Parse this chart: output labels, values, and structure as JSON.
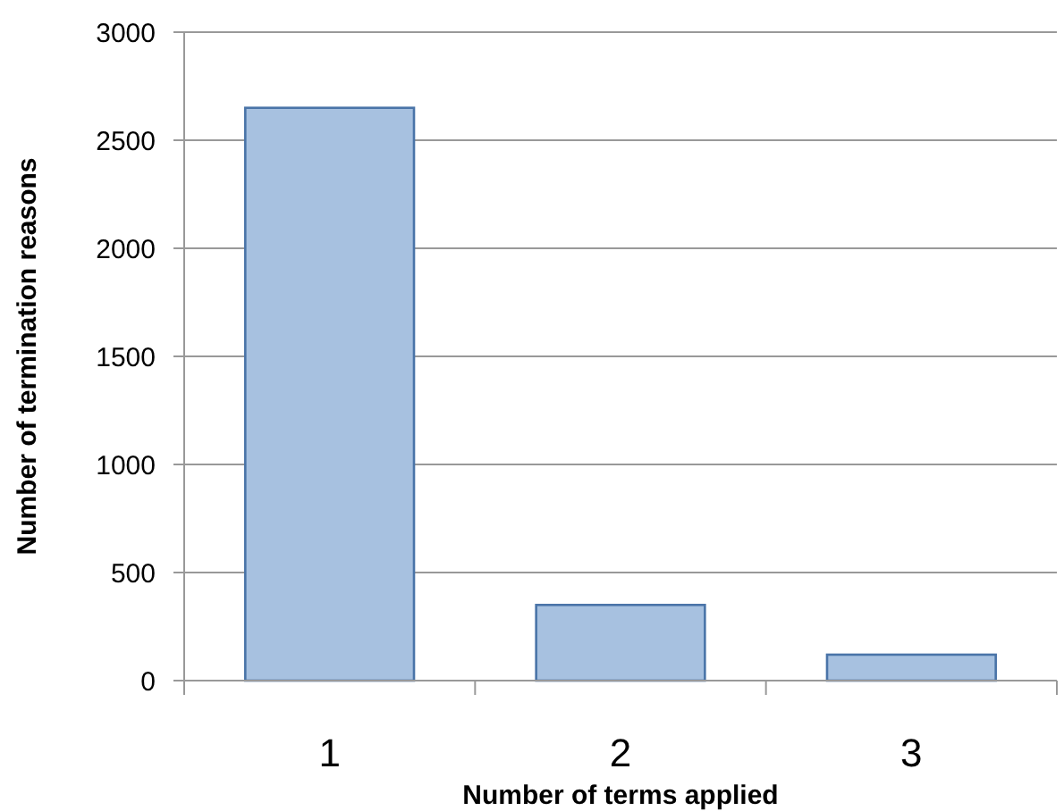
{
  "chart_data": {
    "type": "bar",
    "xlabel": "Number of terms applied",
    "ylabel": "Number of termination reasons",
    "categories": [
      "1",
      "2",
      "3"
    ],
    "values": [
      2650,
      350,
      120
    ],
    "color": "#a7c1e0",
    "ylim": [
      0,
      3000
    ],
    "yticks": [
      0,
      500,
      1000,
      1500,
      2000,
      2500,
      3000
    ],
    "grid": "y"
  }
}
